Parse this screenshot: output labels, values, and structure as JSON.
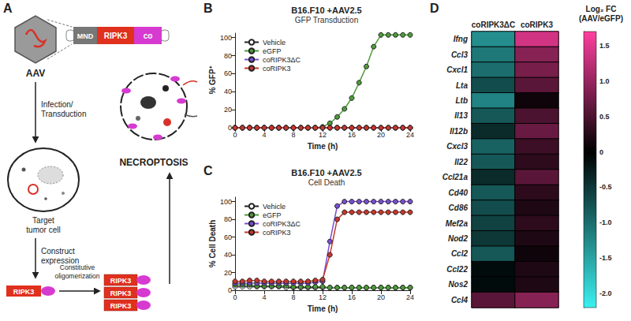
{
  "diagram": {
    "panel_label": "A",
    "virus": "AAV",
    "construct": [
      "MND",
      "RIPK3",
      "co"
    ],
    "infection": [
      "Infection/",
      "Transduction"
    ],
    "cell": [
      "Target",
      "tumor cell"
    ],
    "expression": [
      "Construct",
      "expression"
    ],
    "protein": "RIPK3",
    "oligomerization": [
      "Constitutive",
      "oligomerization"
    ],
    "outcome": "NECROPTOSIS"
  },
  "chart_data": [
    {
      "type": "line",
      "panel_label": "B",
      "title": "B16.F10 +AAV2.5",
      "subtitle": "GFP Transduction",
      "x_label": "Time (h)",
      "y_label": "% GFP⁺",
      "x": [
        0,
        1,
        2,
        3,
        4,
        5,
        6,
        7,
        8,
        9,
        10,
        11,
        12,
        13,
        14,
        15,
        16,
        17,
        18,
        19,
        20,
        21,
        22,
        23,
        24
      ],
      "xlim": [
        0,
        24
      ],
      "xticks": [
        0,
        4,
        8,
        12,
        16,
        20,
        24
      ],
      "ylim": [
        0,
        105
      ],
      "yticks": [
        0,
        20,
        40,
        60,
        80,
        100
      ],
      "grid": false,
      "legend": "upper left",
      "marker": "circle",
      "series": [
        {
          "name": "Vehicle",
          "color": "#ffffff",
          "values": [
            0,
            0,
            0,
            0,
            0,
            0,
            0,
            0,
            0,
            0,
            0,
            0,
            0,
            0,
            0,
            0,
            0,
            0,
            0,
            0,
            0,
            0,
            0,
            0,
            0
          ]
        },
        {
          "name": "eGFP",
          "color": "#4f9a3c",
          "values": [
            0,
            0,
            0,
            0,
            0,
            0,
            0,
            0,
            0,
            0,
            0,
            0,
            1,
            5,
            12,
            21,
            33,
            50,
            68,
            90,
            103,
            103,
            103,
            103,
            103
          ]
        },
        {
          "name": "coRIPK3ΔC",
          "color": "#7a4fd0",
          "values": [
            0,
            0,
            0,
            0,
            0,
            0,
            0,
            0,
            0,
            0,
            0,
            0,
            0,
            0,
            0,
            0,
            0,
            0,
            0,
            0,
            0,
            0,
            0,
            0,
            0
          ]
        },
        {
          "name": "coRIPK3",
          "color": "#c8372d",
          "values": [
            0,
            0,
            0,
            0,
            0,
            0,
            0,
            0,
            0,
            0,
            0,
            0,
            0,
            0,
            0,
            0,
            0,
            0,
            0,
            0,
            0,
            0,
            0,
            0,
            0
          ]
        }
      ]
    },
    {
      "type": "line",
      "panel_label": "C",
      "title": "B16.F10 +AAV2.5",
      "subtitle": "Cell Death",
      "x_label": "Time (h)",
      "y_label": "% Cell Death",
      "x": [
        0,
        1,
        2,
        3,
        4,
        5,
        6,
        7,
        8,
        9,
        10,
        11,
        12,
        13,
        14,
        15,
        16,
        17,
        18,
        19,
        20,
        21,
        22,
        23,
        24
      ],
      "xlim": [
        0,
        24
      ],
      "xticks": [
        0,
        4,
        8,
        12,
        16,
        20,
        24
      ],
      "ylim": [
        0,
        105
      ],
      "yticks": [
        0,
        20,
        40,
        60,
        80,
        100
      ],
      "grid": false,
      "legend": "upper left",
      "marker": "circle",
      "series": [
        {
          "name": "Vehicle",
          "color": "#ffffff",
          "values": [
            4,
            4,
            4,
            4,
            4,
            4,
            4,
            3,
            3,
            3,
            3,
            3,
            3,
            3,
            3,
            3,
            3,
            3,
            3,
            3,
            3,
            3,
            3,
            3,
            3
          ]
        },
        {
          "name": "eGFP",
          "color": "#4f9a3c",
          "values": [
            6,
            6,
            6,
            5,
            5,
            5,
            5,
            5,
            4,
            4,
            4,
            4,
            4,
            3,
            3,
            3,
            3,
            3,
            3,
            3,
            3,
            3,
            3,
            3,
            3
          ]
        },
        {
          "name": "coRIPK3ΔC",
          "color": "#7a4fd0",
          "values": [
            8,
            8,
            8,
            8,
            8,
            8,
            8,
            8,
            8,
            8,
            8,
            9,
            10,
            55,
            95,
            100,
            100,
            100,
            100,
            100,
            100,
            100,
            100,
            100,
            100
          ]
        },
        {
          "name": "coRIPK3",
          "color": "#c8372d",
          "values": [
            10,
            10,
            11,
            11,
            10,
            10,
            10,
            10,
            10,
            10,
            10,
            11,
            12,
            40,
            80,
            88,
            88,
            88,
            88,
            88,
            88,
            88,
            88,
            88,
            88
          ]
        }
      ]
    },
    {
      "type": "heatmap",
      "panel_label": "D",
      "columns": [
        "coRIPK3ΔC",
        "coRIPK3"
      ],
      "rows": [
        "Ifng",
        "Ccl3",
        "Cxcl1",
        "Lta",
        "Ltb",
        "Il13",
        "Il12b",
        "Cxcl3",
        "Il22",
        "Ccl21a",
        "Cd40",
        "Cd86",
        "Mef2a",
        "Nod2",
        "Ccl2",
        "Ccl22",
        "Nos2",
        "Ccl4"
      ],
      "values": [
        [
          -1.3,
          1.4
        ],
        [
          -1.1,
          0.9
        ],
        [
          -1.0,
          0.8
        ],
        [
          -0.7,
          0.6
        ],
        [
          -1.2,
          0.1
        ],
        [
          -0.8,
          0.5
        ],
        [
          -0.4,
          0.7
        ],
        [
          -0.9,
          0.4
        ],
        [
          -0.8,
          0.3
        ],
        [
          -0.4,
          0.6
        ],
        [
          -0.8,
          0.3
        ],
        [
          -0.7,
          0.2
        ],
        [
          -0.6,
          0.3
        ],
        [
          -0.5,
          0.2
        ],
        [
          -0.8,
          0.1
        ],
        [
          -0.1,
          0.2
        ],
        [
          -0.1,
          0.2
        ],
        [
          0.6,
          0.9
        ]
      ],
      "colorbar": {
        "title": [
          "Log₂ FC",
          "(AAV/eGFP)"
        ],
        "range": [
          -2.2,
          1.7
        ],
        "ticks": [
          1.5,
          {
            "value": 1,
            "label": "1.0"
          },
          0.5,
          0,
          -0.5,
          {
            "value": -1,
            "label": "-1.0"
          },
          -1.5,
          {
            "value": -2,
            "label": "-2.0"
          }
        ],
        "colors": [
          "#3cf0f0",
          "#000000",
          "#ff3fa0"
        ]
      }
    }
  ]
}
